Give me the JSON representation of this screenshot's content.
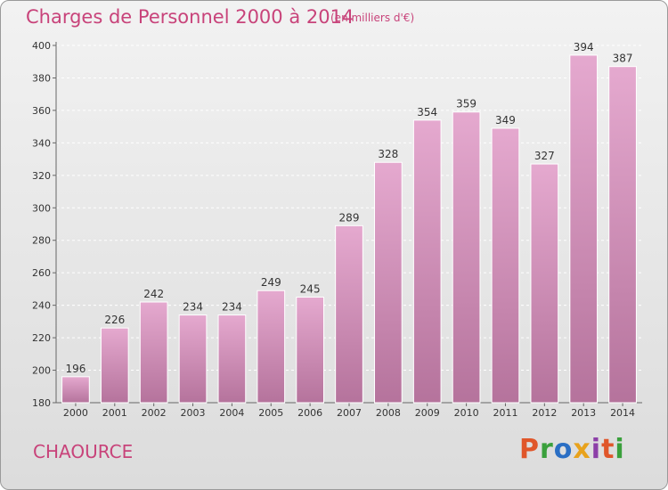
{
  "header": {
    "title": "Charges de Personnel 2000 à 2014",
    "subtitle": "(en milliers d'€)"
  },
  "footer": {
    "commune": "CHAOURCE",
    "logo_text": "Proxiti",
    "logo_colors": [
      "#e0562a",
      "#3aa03c",
      "#2b6fc4",
      "#e8a21c",
      "#8c3fa8",
      "#e0562a",
      "#3aa03c"
    ]
  },
  "colors": {
    "bar_top": "#e5a9cf",
    "bar_bottom": "#b5739c",
    "text_accent": "#c8437a"
  },
  "chart_data": {
    "type": "bar",
    "title": "Charges de Personnel 2000 à 2014",
    "subtitle": "(en milliers d'€)",
    "xlabel": "",
    "ylabel": "",
    "categories": [
      "2000",
      "2001",
      "2002",
      "2003",
      "2004",
      "2005",
      "2006",
      "2007",
      "2008",
      "2009",
      "2010",
      "2011",
      "2012",
      "2013",
      "2014"
    ],
    "values": [
      196,
      226,
      242,
      234,
      234,
      249,
      245,
      289,
      328,
      354,
      359,
      349,
      327,
      394,
      387
    ],
    "ylim": [
      180,
      400
    ],
    "yticks": [
      180,
      200,
      220,
      240,
      260,
      280,
      300,
      320,
      340,
      360,
      380,
      400
    ],
    "grid": true
  }
}
